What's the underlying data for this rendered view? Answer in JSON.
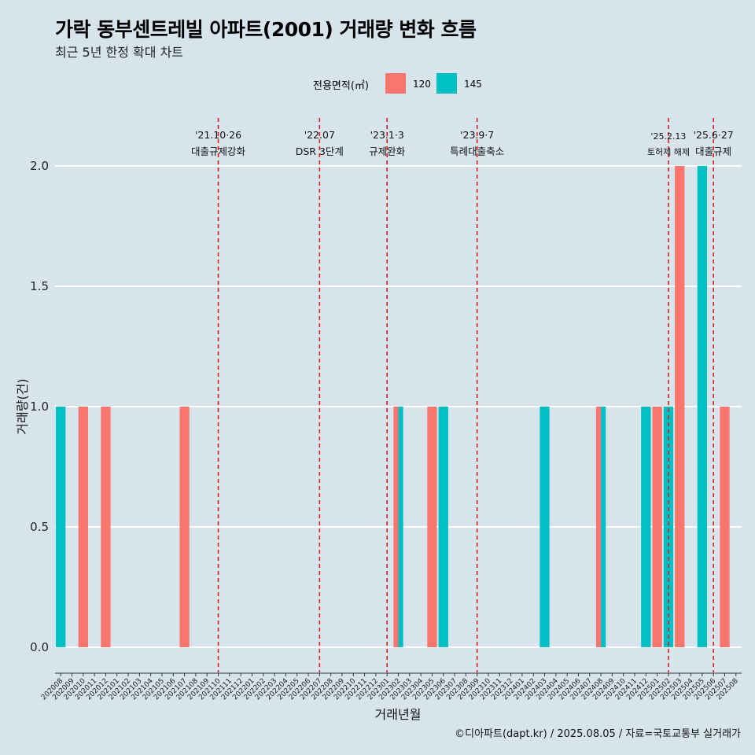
{
  "colors": {
    "series_120": "#f8766d",
    "series_145": "#00bfc4",
    "event_line": "#e41a1c",
    "grid": "#ffffff"
  },
  "chart_data": {
    "type": "bar",
    "title": "가락 동부센트레빌 아파트(2001) 거래량 변화 흐름",
    "subtitle": "최근 5년 한정 확대 차트",
    "xlabel": "거래년월",
    "ylabel": "거래량(건)",
    "ylim": [
      0,
      2
    ],
    "y_ticks": [
      "0.0",
      "0.5",
      "1.0",
      "1.5",
      "2.0"
    ],
    "y_tick_values": [
      0,
      0.5,
      1,
      1.5,
      2
    ],
    "legend": {
      "title": "전용면적(㎡)",
      "position": "top",
      "entries": [
        "120",
        "145"
      ]
    },
    "categories": [
      "202008",
      "202009",
      "202010",
      "202011",
      "202012",
      "202101",
      "202102",
      "202103",
      "202104",
      "202105",
      "202106",
      "202107",
      "202108",
      "202109",
      "202110",
      "202111",
      "202112",
      "202201",
      "202202",
      "202203",
      "202204",
      "202205",
      "202206",
      "202207",
      "202208",
      "202209",
      "202210",
      "202211",
      "202212",
      "202301",
      "202302",
      "202303",
      "202304",
      "202305",
      "202306",
      "202307",
      "202308",
      "202309",
      "202310",
      "202311",
      "202312",
      "202401",
      "202402",
      "202403",
      "202404",
      "202405",
      "202406",
      "202407",
      "202408",
      "202409",
      "202410",
      "202411",
      "202412",
      "202501",
      "202502",
      "202503",
      "202504",
      "202505",
      "202506",
      "202507",
      "202508"
    ],
    "series": [
      {
        "name": "120",
        "points": [
          [
            "202010",
            1
          ],
          [
            "202012",
            1
          ],
          [
            "202107",
            1
          ],
          [
            "202302",
            1
          ],
          [
            "202305",
            1
          ],
          [
            "202408",
            1
          ],
          [
            "202501",
            1
          ],
          [
            "202503",
            2
          ],
          [
            "202507",
            1
          ]
        ]
      },
      {
        "name": "145",
        "points": [
          [
            "202008",
            1
          ],
          [
            "202302",
            1
          ],
          [
            "202306",
            1
          ],
          [
            "202403",
            1
          ],
          [
            "202408",
            1
          ],
          [
            "202412",
            1
          ],
          [
            "202502",
            1
          ],
          [
            "202505",
            2
          ]
        ]
      }
    ],
    "events": [
      {
        "month": "202110",
        "date": "'21.10·26",
        "label": "대출규제강화"
      },
      {
        "month": "202207",
        "date": "'22.07",
        "label": "DSR 3단계"
      },
      {
        "month": "202301",
        "date": "'23.1·3",
        "label": "규제완화"
      },
      {
        "month": "202309",
        "date": "'23.9·7",
        "label": "특례대출축소"
      },
      {
        "month": "202502",
        "date": "'25.2.13",
        "label": "토허제 해제"
      },
      {
        "month": "202506",
        "date": "'25.6·27",
        "label": "대출규제"
      }
    ]
  },
  "caption": "©디아파트(dapt.kr) / 2025.08.05 / 자료=국토교통부 실거래가"
}
